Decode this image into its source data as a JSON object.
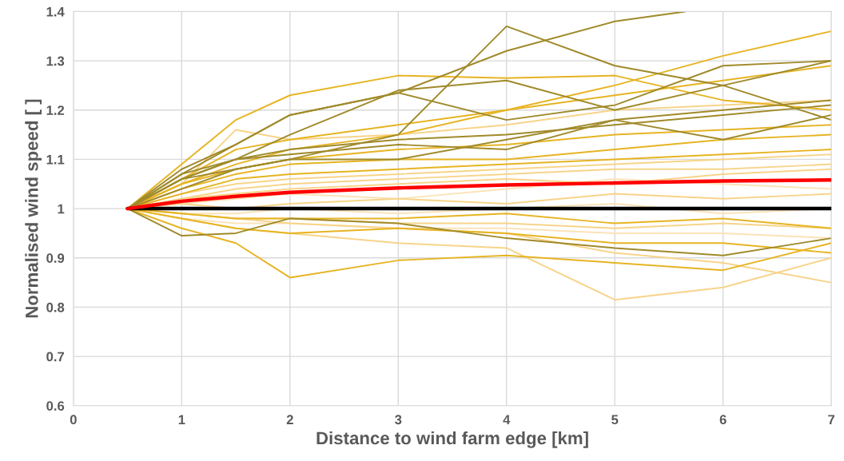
{
  "chart_data": {
    "type": "line",
    "xlabel": "Distance to wind farm edge [km]",
    "ylabel": "Normalised wind speed [ ]",
    "x": [
      0.5,
      1,
      1.5,
      2,
      3,
      4,
      5,
      6,
      7
    ],
    "xlim": [
      0,
      7
    ],
    "xticks": [
      0,
      1,
      2,
      3,
      4,
      5,
      6,
      7
    ],
    "ylim": [
      0.6,
      1.4
    ],
    "yticks": [
      0.6,
      0.7,
      0.8,
      0.9,
      1,
      1.1,
      1.2,
      1.3,
      1.4
    ],
    "grid": true,
    "marker": "none",
    "line_style": "solid",
    "series": [
      {
        "color": "#fbe3b8",
        "values": [
          1,
          1.01,
          1.02,
          1.03,
          1.02,
          1.04,
          1.06,
          1.05,
          1.04
        ]
      },
      {
        "color": "#fbe3b8",
        "values": [
          1,
          0.98,
          0.97,
          0.97,
          0.96,
          0.96,
          0.95,
          0.95,
          0.94
        ]
      },
      {
        "color": "#fbe3b8",
        "values": [
          1,
          0.99,
          0.99,
          1.0,
          0.99,
          1.0,
          1.01,
          0.99,
          1.0
        ]
      },
      {
        "color": "#f7d48a",
        "values": [
          1,
          1.03,
          1.05,
          1.06,
          1.07,
          1.08,
          1.09,
          1.1,
          1.11
        ]
      },
      {
        "color": "#f7d48a",
        "values": [
          1,
          1.02,
          1.03,
          1.04,
          1.05,
          1.06,
          1.05,
          1.07,
          1.08
        ]
      },
      {
        "color": "#f7d48a",
        "values": [
          1,
          0.99,
          0.98,
          0.98,
          0.97,
          0.97,
          0.96,
          0.97,
          0.96
        ]
      },
      {
        "color": "#f7d48a",
        "values": [
          1,
          1.05,
          1.16,
          1.14,
          1.15,
          1.17,
          1.2,
          1.21,
          1.22
        ]
      },
      {
        "color": "#f7d48a",
        "values": [
          1,
          1.02,
          1.04,
          1.05,
          1.06,
          1.07,
          1.08,
          1.08,
          1.09
        ]
      },
      {
        "color": "#f7d48a",
        "values": [
          1,
          1.01,
          1.0,
          1.01,
          1.02,
          1.01,
          1.03,
          1.02,
          1.03
        ]
      },
      {
        "color": "#f7d48a",
        "values": [
          1,
          0.98,
          0.96,
          0.95,
          0.93,
          0.92,
          0.815,
          0.84,
          0.9
        ]
      },
      {
        "color": "#f7d48a",
        "values": [
          1,
          0.99,
          0.98,
          0.97,
          0.96,
          0.95,
          0.91,
          0.89,
          0.85
        ]
      },
      {
        "color": "#e6b422",
        "values": [
          1,
          1.05,
          1.08,
          1.1,
          1.12,
          1.13,
          1.15,
          1.16,
          1.17
        ]
      },
      {
        "color": "#e6b422",
        "values": [
          1,
          1.04,
          1.07,
          1.09,
          1.1,
          1.1,
          1.12,
          1.14,
          1.15
        ]
      },
      {
        "color": "#e6b422",
        "values": [
          1,
          0.99,
          0.98,
          0.98,
          0.98,
          0.99,
          0.97,
          0.98,
          0.96
        ]
      },
      {
        "color": "#e6b422",
        "values": [
          1,
          1.06,
          1.12,
          1.14,
          1.17,
          1.2,
          1.23,
          1.26,
          1.29
        ]
      },
      {
        "color": "#e6b422",
        "values": [
          1,
          1.03,
          1.06,
          1.07,
          1.08,
          1.09,
          1.1,
          1.11,
          1.12
        ]
      },
      {
        "color": "#e6b422",
        "values": [
          1,
          0.98,
          0.96,
          0.95,
          0.96,
          0.95,
          0.93,
          0.93,
          0.91
        ]
      },
      {
        "color": "#e6b422",
        "values": [
          1,
          0.96,
          0.93,
          0.86,
          0.895,
          0.905,
          0.89,
          0.875,
          0.93
        ]
      },
      {
        "color": "#e6b422",
        "values": [
          1,
          1.09,
          1.18,
          1.23,
          1.27,
          1.265,
          1.27,
          1.22,
          1.2
        ]
      },
      {
        "color": "#e6b422",
        "values": [
          1,
          1.05,
          1.09,
          1.12,
          1.15,
          1.2,
          1.25,
          1.31,
          1.36
        ]
      },
      {
        "color": "#a08a2a",
        "values": [
          1,
          1.06,
          1.1,
          1.11,
          1.13,
          1.12,
          1.18,
          1.2,
          1.22
        ]
      },
      {
        "color": "#a08a2a",
        "values": [
          1,
          1.07,
          1.1,
          1.12,
          1.14,
          1.15,
          1.17,
          1.19,
          1.21
        ]
      },
      {
        "color": "#a08a2a",
        "values": [
          1,
          1.06,
          1.1,
          1.15,
          1.24,
          1.26,
          1.2,
          1.25,
          1.18
        ]
      },
      {
        "color": "#a08a2a",
        "values": [
          1,
          1.04,
          1.08,
          1.1,
          1.1,
          1.14,
          1.18,
          1.14,
          1.19
        ]
      },
      {
        "color": "#a08a2a",
        "values": [
          1,
          0.945,
          0.95,
          0.98,
          0.97,
          0.94,
          0.92,
          0.905,
          0.94
        ]
      },
      {
        "color": "#a08a2a",
        "values": [
          1,
          1.07,
          1.13,
          1.19,
          1.235,
          1.18,
          1.21,
          1.29,
          1.3
        ]
      },
      {
        "color": "#a08a2a",
        "values": [
          1,
          1.06,
          1.08,
          1.1,
          1.15,
          1.37,
          1.29,
          1.25,
          1.3
        ]
      },
      {
        "color": "#a08a2a",
        "x": [
          0.5,
          1,
          1.5,
          2,
          3,
          4,
          5,
          5.65
        ],
        "values": [
          1,
          1.08,
          1.13,
          1.19,
          1.235,
          1.32,
          1.38,
          1.4
        ]
      },
      {
        "color": "#000000",
        "values": [
          1,
          1,
          1,
          1,
          1,
          1,
          1,
          1,
          1
        ]
      },
      {
        "color": "#ff0000",
        "values": [
          1,
          1.015,
          1.025,
          1.033,
          1.042,
          1.048,
          1.052,
          1.056,
          1.058
        ]
      }
    ]
  }
}
